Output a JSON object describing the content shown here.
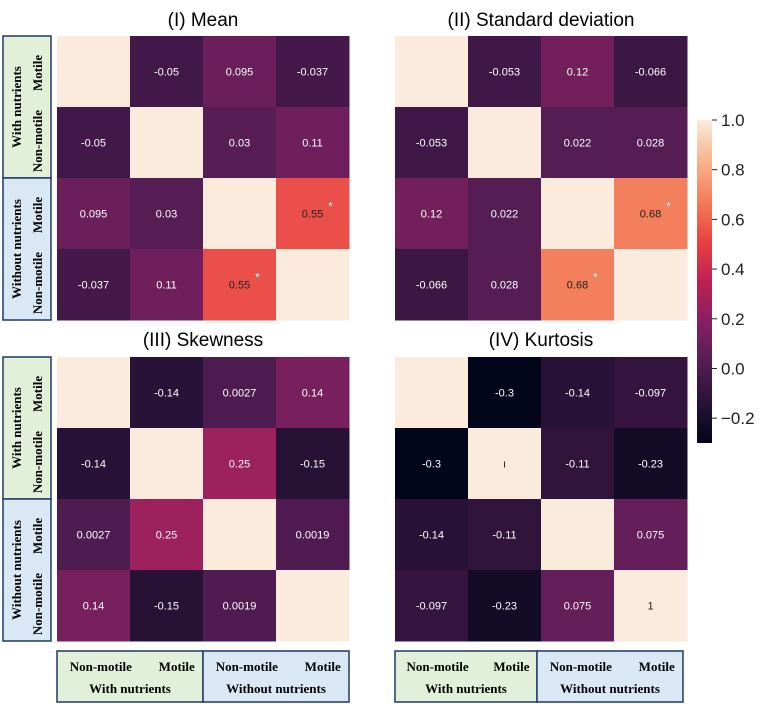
{
  "chart_data": {
    "type": "heatmap",
    "row_group_labels": [
      {
        "group": "With nutrients",
        "motile": "Motile",
        "nonmotile": "Non-motile"
      },
      {
        "group": "Without nutrients",
        "motile": "Motile",
        "nonmotile": "Non-motile"
      }
    ],
    "col_group_labels": [
      {
        "group": "With nutrients",
        "nonmotile": "Non-motile",
        "motile": "Motile"
      },
      {
        "group": "Without nutrients",
        "nonmotile": "Non-motile",
        "motile": "Motile"
      }
    ],
    "colorbar": {
      "range": [
        -0.3,
        1.0
      ],
      "ticks": [
        1.0,
        0.8,
        0.6,
        0.4,
        0.2,
        0.0,
        -0.2
      ],
      "tick_labels": [
        "1.0",
        "0.8",
        "0.6",
        "0.4",
        "0.2",
        "0.0",
        "−0.2"
      ]
    },
    "panels": [
      {
        "title": "(I) Mean",
        "values": [
          [
            1,
            -0.05,
            0.095,
            -0.037
          ],
          [
            -0.05,
            1,
            0.03,
            0.11
          ],
          [
            0.095,
            0.03,
            1,
            0.55
          ],
          [
            -0.037,
            0.11,
            0.55,
            1
          ]
        ],
        "labels": [
          [
            "",
            "-0.05",
            "0.095",
            "-0.037"
          ],
          [
            "-0.05",
            "",
            "0.03",
            "0.11"
          ],
          [
            "0.095",
            "0.03",
            "",
            "0.55"
          ],
          [
            "-0.037",
            "0.11",
            "0.55",
            ""
          ]
        ],
        "significant": [
          [
            2,
            3
          ],
          [
            3,
            2
          ]
        ]
      },
      {
        "title": "(II) Standard deviation",
        "values": [
          [
            1,
            -0.053,
            0.12,
            -0.066
          ],
          [
            -0.053,
            1,
            0.022,
            0.028
          ],
          [
            0.12,
            0.022,
            1,
            0.68
          ],
          [
            -0.066,
            0.028,
            0.68,
            1
          ]
        ],
        "labels": [
          [
            "",
            "-0.053",
            "0.12",
            "-0.066"
          ],
          [
            "-0.053",
            "",
            "0.022",
            "0.028"
          ],
          [
            "0.12",
            "0.022",
            "",
            "0.68"
          ],
          [
            "-0.066",
            "0.028",
            "0.68",
            ""
          ]
        ],
        "significant": [
          [
            2,
            3
          ],
          [
            3,
            2
          ]
        ]
      },
      {
        "title": "(III) Skewness",
        "values": [
          [
            1,
            -0.14,
            0.0027,
            0.14
          ],
          [
            -0.14,
            1,
            0.25,
            -0.15
          ],
          [
            0.0027,
            0.25,
            1,
            0.0019
          ],
          [
            0.14,
            -0.15,
            0.0019,
            1
          ]
        ],
        "labels": [
          [
            "",
            "-0.14",
            "0.0027",
            "0.14"
          ],
          [
            "-0.14",
            "",
            "0.25",
            "-0.15"
          ],
          [
            "0.0027",
            "0.25",
            "",
            "0.0019"
          ],
          [
            "0.14",
            "-0.15",
            "0.0019",
            ""
          ]
        ],
        "significant": []
      },
      {
        "title": "(IV) Kurtosis",
        "values": [
          [
            1,
            -0.3,
            -0.14,
            -0.097
          ],
          [
            -0.3,
            1,
            -0.11,
            -0.23
          ],
          [
            -0.14,
            -0.11,
            1,
            0.075
          ],
          [
            -0.097,
            -0.23,
            0.075,
            1
          ]
        ],
        "labels": [
          [
            "",
            "-0.3",
            "-0.14",
            "-0.097"
          ],
          [
            "-0.3",
            "ı",
            "-0.11",
            "-0.23"
          ],
          [
            "-0.14",
            "-0.11",
            "",
            "0.075"
          ],
          [
            "-0.097",
            "-0.23",
            "0.075",
            "1"
          ]
        ],
        "significant": []
      }
    ],
    "significance_marker": "*",
    "colors": {
      "with_nutrients_fill": "#e2f0d9",
      "without_nutrients_fill": "#dae8f5",
      "label_border": "#1f3864"
    }
  }
}
